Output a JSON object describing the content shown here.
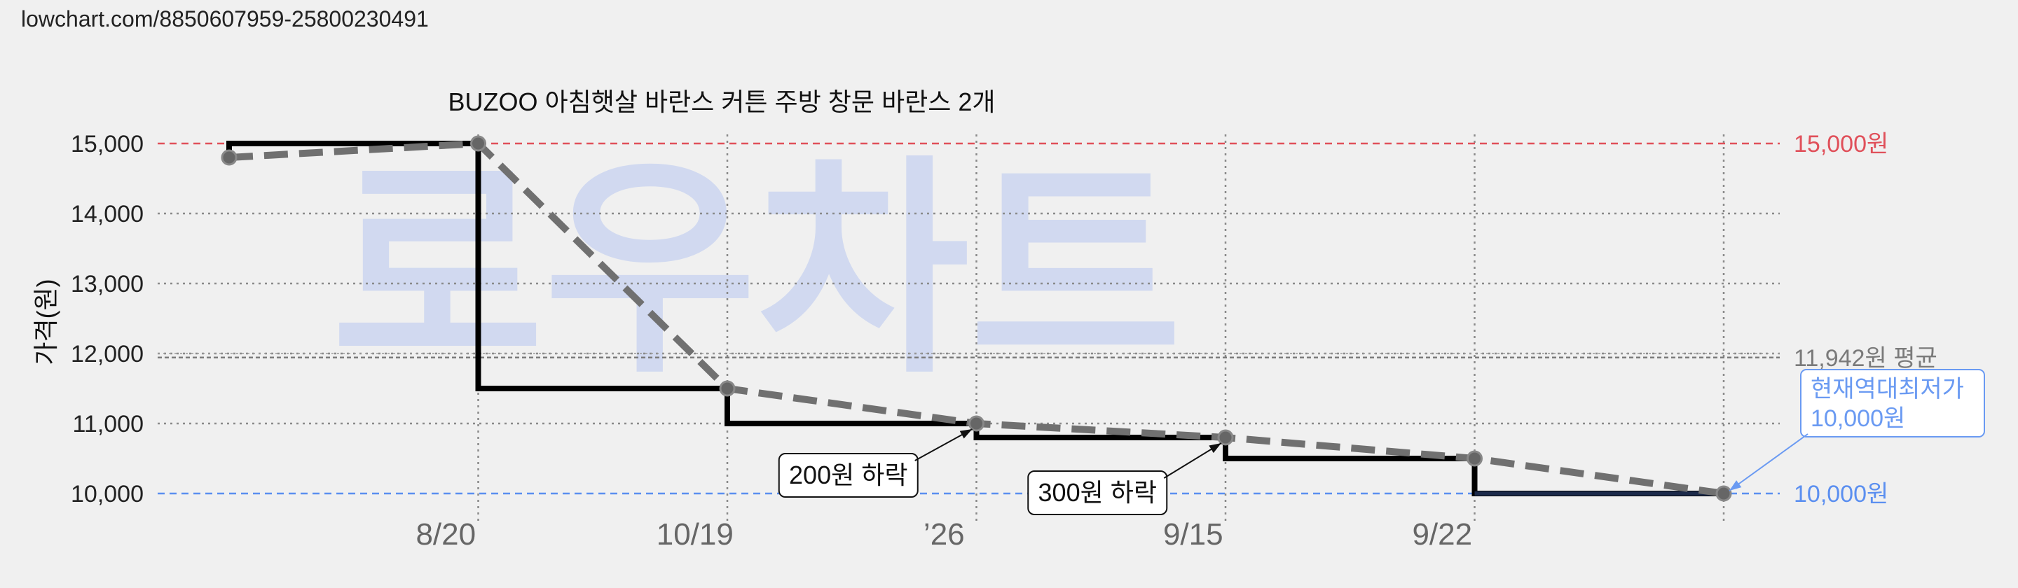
{
  "url_text": "lowchart.com/8850607959-25800230491",
  "watermark": "로우차트",
  "colors": {
    "background": "#f0f0f0",
    "max_line": "#e0505a",
    "min_line": "#5b8ff0",
    "avg_line": "#7a7a7a",
    "step_line": "#000000",
    "trend_line": "#707070",
    "watermark": "#b8c8f0"
  },
  "chart_data": {
    "type": "line",
    "title": "BUZOO 아침햇살 바란스 커튼 주방 창문 바란스 2개",
    "ylabel": "가격(원)",
    "xlabel": "",
    "ylim": [
      9500,
      15600
    ],
    "yticks": [
      10000,
      11000,
      12000,
      13000,
      14000,
      15000
    ],
    "ytick_labels": [
      "10,000",
      "11,000",
      "12,000",
      "13,000",
      "14,000",
      "15,000"
    ],
    "x_gridlines": [
      1,
      2,
      3,
      4,
      5,
      6
    ],
    "xticks": [
      {
        "x": 0.87,
        "label": "8/20"
      },
      {
        "x": 1.87,
        "label": "10/19"
      },
      {
        "x": 2.87,
        "label": "’26"
      },
      {
        "x": 3.87,
        "label": "9/15"
      },
      {
        "x": 4.87,
        "label": "9/22"
      }
    ],
    "xlim": [
      -0.3,
      6.3
    ],
    "series": [
      {
        "style": "step",
        "x": [
          0,
          0,
          1,
          1,
          2,
          2,
          3,
          3,
          4,
          4,
          5,
          5,
          6
        ],
        "values": [
          14800,
          15000,
          15000,
          11500,
          11500,
          11000,
          11000,
          10800,
          10800,
          10500,
          10500,
          10000,
          10000
        ]
      },
      {
        "style": "dashed-trend",
        "x": [
          0,
          1,
          2,
          3,
          4,
          5,
          6
        ],
        "values": [
          14800,
          15000,
          11500,
          11000,
          10800,
          10500,
          10000
        ]
      }
    ],
    "reference_lines": [
      {
        "kind": "max",
        "value": 15000,
        "label": "15,000원"
      },
      {
        "kind": "avg",
        "value": 11942,
        "label": "11,942원 평균"
      },
      {
        "kind": "min",
        "value": 10000,
        "label": "10,000원"
      }
    ],
    "annotations": [
      {
        "text": "200원 하락",
        "target_x": 3,
        "target_y": 11000,
        "box_x": 2.32,
        "box_y": 10250
      },
      {
        "text": "300원 하락",
        "target_x": 4,
        "target_y": 10800,
        "box_x": 3.32,
        "box_y": 10000
      }
    ],
    "callout": {
      "lines": [
        "현재역대최저가",
        "10,000원"
      ],
      "target_x": 6,
      "target_y": 10000
    }
  }
}
